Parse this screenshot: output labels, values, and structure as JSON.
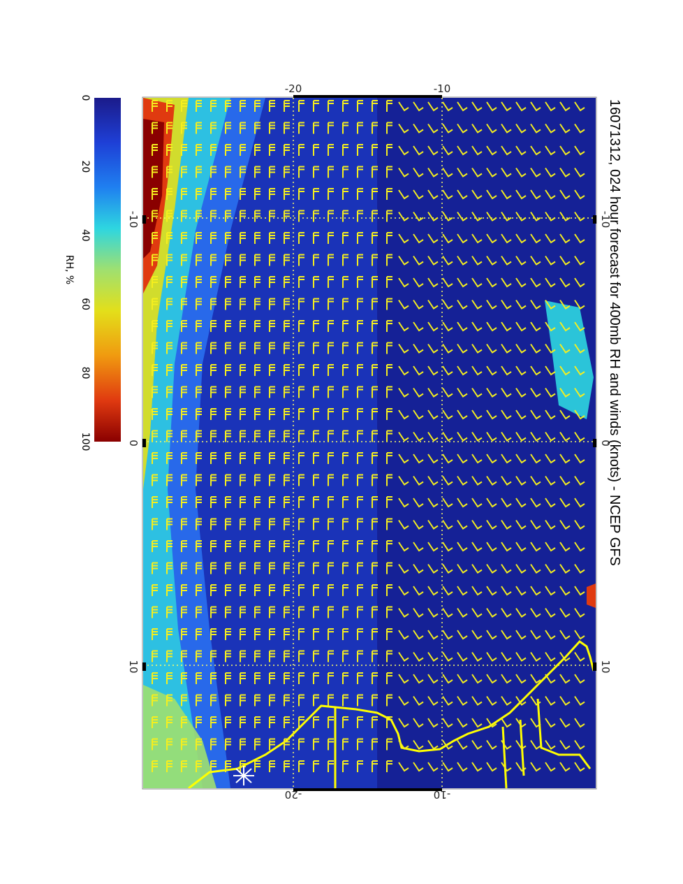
{
  "title": "16071312, 024 hour forecast for 400mb RH and winds (knots) - NCEP GFS",
  "colorbar": {
    "label": "RH, %",
    "ticks": [
      "0",
      "20",
      "40",
      "60",
      "80",
      "100"
    ],
    "colors": [
      "#1b1b8a",
      "#1e3fd6",
      "#1f7ff0",
      "#2ed6e0",
      "#9fe070",
      "#e3df1a",
      "#f09a10",
      "#e03a10",
      "#8a0000"
    ]
  },
  "axes": {
    "top_ticks": [
      "-20",
      "-10"
    ],
    "bottom_ticks": [
      "-20",
      "-10"
    ],
    "left_ticks": [
      "-10",
      "0",
      "10"
    ],
    "right_ticks": [
      "-10",
      "0",
      "10"
    ]
  },
  "map": {
    "wind_barb_color": "#f5ef1e",
    "coast_color": "#ffff00",
    "grid_color": "#ffff66",
    "background": "#1a33b8"
  }
}
